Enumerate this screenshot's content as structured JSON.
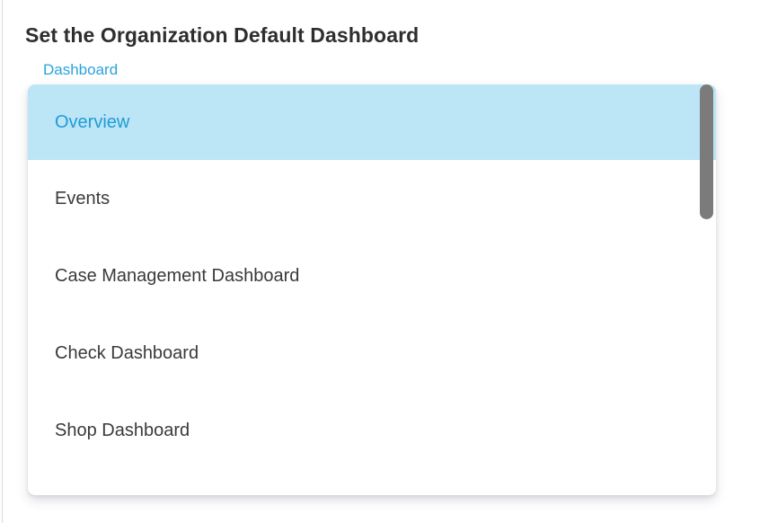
{
  "page": {
    "title": "Set the Organization Default Dashboard"
  },
  "select": {
    "label": "Dashboard",
    "selected_value": "Overview"
  },
  "dropdown": {
    "options": [
      {
        "label": "Overview",
        "selected": true
      },
      {
        "label": "Events",
        "selected": false
      },
      {
        "label": "Case Management Dashboard",
        "selected": false
      },
      {
        "label": "Check Dashboard",
        "selected": false
      },
      {
        "label": "Shop Dashboard",
        "selected": false
      }
    ],
    "scrollbar_visible": true
  },
  "colors": {
    "accent_blue": "#1F9CD6",
    "label_blue": "#29A4DC",
    "highlight_bg": "#BCE5F6",
    "item_text": "#3A3A3A",
    "title_text": "#2E2E2E",
    "scrollbar_thumb": "#7B7B7B",
    "page_border": "#D9D9E2"
  }
}
